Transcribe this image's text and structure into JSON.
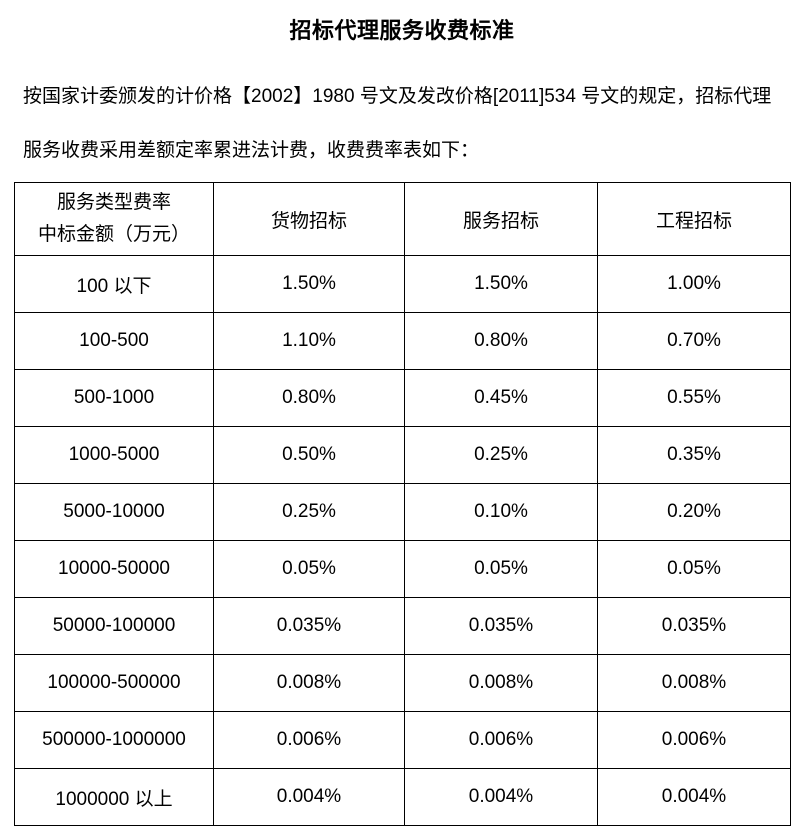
{
  "document": {
    "title": "招标代理服务收费标准",
    "intro_line1": "按国家计委颁发的计价格【2002】1980 号文及发改价格[2011]534 号文的规定，招标代理",
    "intro_line2": "服务收费采用差额定率累进法计费，收费费率表如下："
  },
  "table": {
    "corner": {
      "line1": "服务类型费率",
      "line2": "中标金额（万元）"
    },
    "columns": [
      "货物招标",
      "服务招标",
      "工程招标"
    ],
    "rows": [
      {
        "range": "100 以下",
        "goods": "1.50%",
        "service": "1.50%",
        "engineering": "1.00%"
      },
      {
        "range": "100-500",
        "goods": "1.10%",
        "service": "0.80%",
        "engineering": "0.70%"
      },
      {
        "range": "500-1000",
        "goods": "0.80%",
        "service": "0.45%",
        "engineering": "0.55%"
      },
      {
        "range": "1000-5000",
        "goods": "0.50%",
        "service": "0.25%",
        "engineering": "0.35%"
      },
      {
        "range": "5000-10000",
        "goods": "0.25%",
        "service": "0.10%",
        "engineering": "0.20%"
      },
      {
        "range": "10000-50000",
        "goods": "0.05%",
        "service": "0.05%",
        "engineering": "0.05%"
      },
      {
        "range": "50000-100000",
        "goods": "0.035%",
        "service": "0.035%",
        "engineering": "0.035%"
      },
      {
        "range": "100000-500000",
        "goods": "0.008%",
        "service": "0.008%",
        "engineering": "0.008%"
      },
      {
        "range": "500000-1000000",
        "goods": "0.006%",
        "service": "0.006%",
        "engineering": "0.006%"
      },
      {
        "range": "1000000 以上",
        "goods": "0.004%",
        "service": "0.004%",
        "engineering": "0.004%"
      }
    ]
  },
  "colors": {
    "text": "#000000",
    "border": "#000000",
    "background": "#ffffff"
  }
}
